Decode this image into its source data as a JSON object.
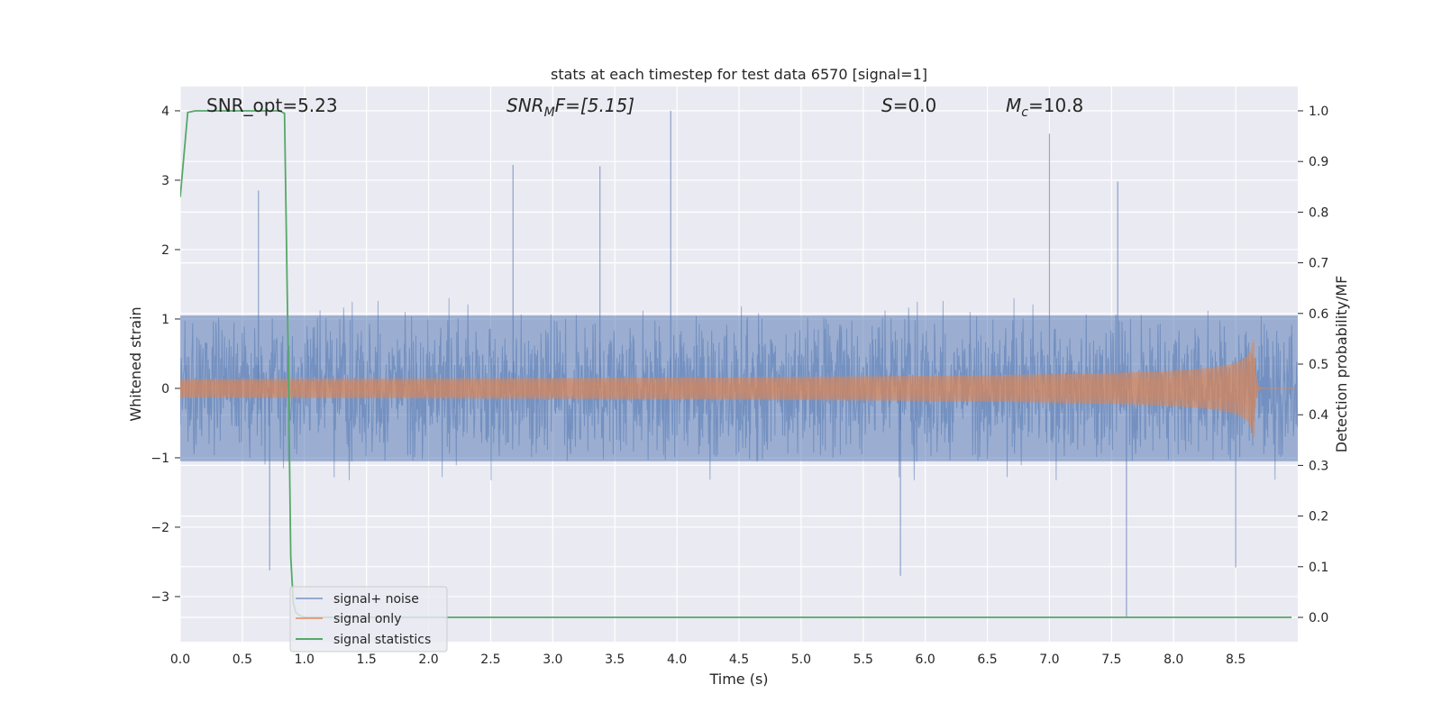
{
  "chart_data": {
    "type": "line",
    "title": "stats at each timestep for test data 6570 [signal=1]",
    "xlabel": "Time (s)",
    "ylabel": "Whitened strain",
    "y2label": "Detection probability/MF",
    "xlim": [
      0.0,
      9.0
    ],
    "ylim": [
      -3.65,
      4.35
    ],
    "y2lim": [
      -0.048,
      1.048
    ],
    "xticks": [
      0.0,
      0.5,
      1.0,
      1.5,
      2.0,
      2.5,
      3.0,
      3.5,
      4.0,
      4.5,
      5.0,
      5.5,
      6.0,
      6.5,
      7.0,
      7.5,
      8.0,
      8.5
    ],
    "xtick_labels": [
      "0.0",
      "0.5",
      "1.0",
      "1.5",
      "2.0",
      "2.5",
      "3.0",
      "3.5",
      "4.0",
      "4.5",
      "5.0",
      "5.5",
      "6.0",
      "6.5",
      "7.0",
      "7.5",
      "8.0",
      "8.5"
    ],
    "yticks": [
      -3,
      -2,
      -1,
      0,
      1,
      2,
      3,
      4
    ],
    "ytick_labels": [
      "−3",
      "−2",
      "−1",
      "0",
      "1",
      "2",
      "3",
      "4"
    ],
    "y2ticks": [
      0.0,
      0.1,
      0.2,
      0.3,
      0.4,
      0.5,
      0.6,
      0.7,
      0.8,
      0.9,
      1.0
    ],
    "y2tick_labels": [
      "0.0",
      "0.1",
      "0.2",
      "0.3",
      "0.4",
      "0.5",
      "0.6",
      "0.7",
      "0.8",
      "0.9",
      "1.0"
    ],
    "grid": true,
    "legend_position": "lower-left",
    "annotations": {
      "snr_opt": "SNR_opt=5.23",
      "snr_mf_base": "SNR",
      "snr_mf_sub": "M",
      "snr_mf_rest": "F=[5.15]",
      "s_var": "S",
      "s_rest": "=0.0",
      "mc_base": "M",
      "mc_sub": "c",
      "mc_rest": "=10.8"
    },
    "series": [
      {
        "name": "signal+ noise",
        "axis": "left",
        "color": "#4c72b0",
        "kind": "noise",
        "amplitude_envelope": 1.0,
        "notable_peaks": [
          [
            3.95,
            4.0
          ],
          [
            7.0,
            3.67
          ],
          [
            0.63,
            2.85
          ],
          [
            2.68,
            3.22
          ],
          [
            3.38,
            3.2
          ],
          [
            7.55,
            2.98
          ],
          [
            7.62,
            -3.3
          ],
          [
            5.8,
            -2.7
          ],
          [
            0.72,
            -2.62
          ],
          [
            8.5,
            -2.58
          ]
        ]
      },
      {
        "name": "signal only",
        "axis": "left",
        "color": "#dd8452",
        "kind": "chirp",
        "merger_time": 8.65,
        "peak_amplitude": 0.7,
        "ringdown_end": 8.7
      },
      {
        "name": "signal statistics",
        "axis": "right",
        "color": "#55a868",
        "kind": "line",
        "x": [
          0.0,
          0.06,
          0.12,
          0.2,
          0.4,
          0.6,
          0.8,
          0.84,
          0.87,
          0.89,
          0.91,
          0.93,
          0.96,
          1.0,
          2.0,
          3.0,
          4.0,
          5.0,
          6.0,
          7.0,
          8.0,
          8.95
        ],
        "y": [
          0.83,
          0.997,
          1.0,
          1.0,
          1.0,
          1.0,
          1.0,
          0.995,
          0.5,
          0.12,
          0.03,
          0.01,
          0.004,
          0.0,
          0.0,
          0.0,
          0.0,
          0.0,
          0.0,
          0.0,
          0.0,
          0.0
        ]
      }
    ]
  }
}
